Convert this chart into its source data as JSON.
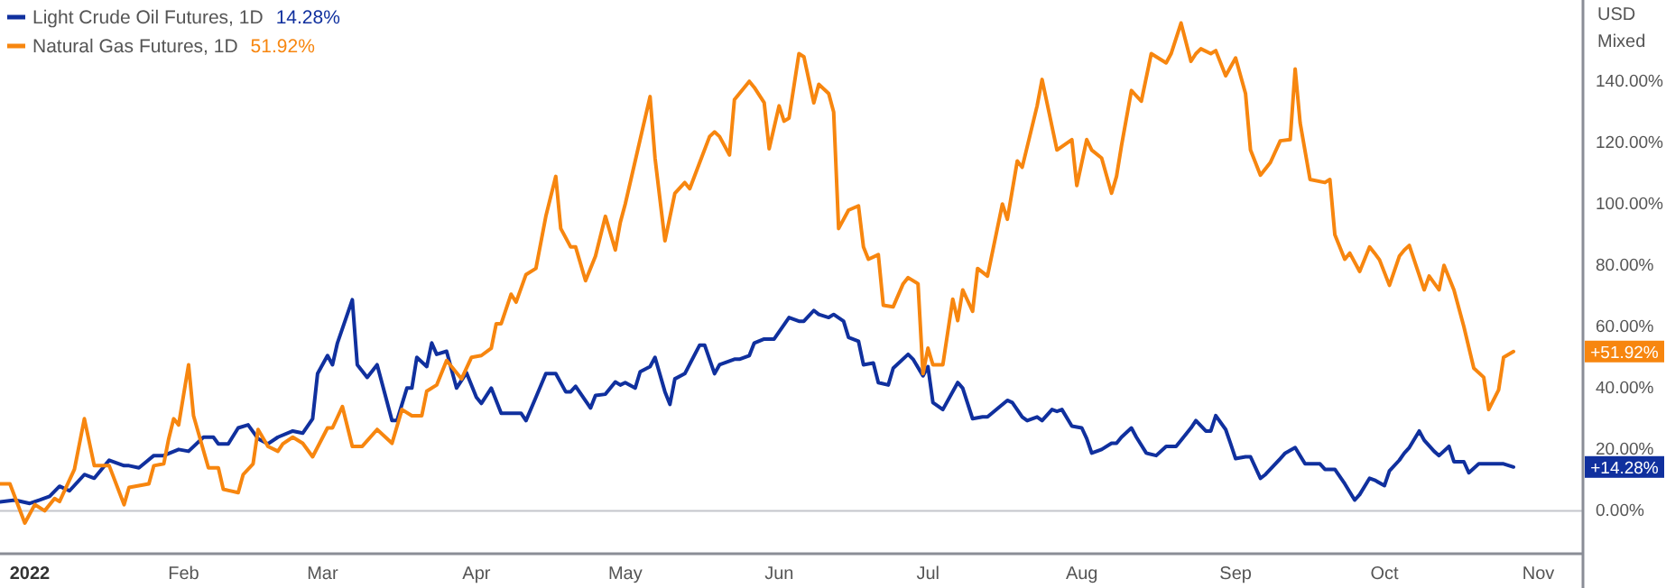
{
  "chart_data": {
    "type": "line",
    "legend": "top left",
    "line_style": "solid",
    "marker": "none",
    "grid": false,
    "xlim": [
      "2021-12-26",
      "2022-11-10"
    ],
    "xticks": [
      {
        "value": "2022-01-01",
        "label": "2022"
      },
      {
        "value": "2022-02-01",
        "label": "Feb"
      },
      {
        "value": "2022-03-01",
        "label": "Mar"
      },
      {
        "value": "2022-04-01",
        "label": "Apr"
      },
      {
        "value": "2022-05-01",
        "label": "May"
      },
      {
        "value": "2022-06-01",
        "label": "Jun"
      },
      {
        "value": "2022-07-01",
        "label": "Jul"
      },
      {
        "value": "2022-08-01",
        "label": "Aug"
      },
      {
        "value": "2022-09-01",
        "label": "Sep"
      },
      {
        "value": "2022-10-01",
        "label": "Oct"
      },
      {
        "value": "2022-11-01",
        "label": "Nov"
      }
    ],
    "ylim": [
      -14,
      166.5
    ],
    "yticks": [
      {
        "value": 0,
        "label": "0.00%"
      },
      {
        "value": 20,
        "label": "20.00%"
      },
      {
        "value": 40,
        "label": "40.00%"
      },
      {
        "value": 60,
        "label": "60.00%"
      },
      {
        "value": 80,
        "label": "80.00%"
      },
      {
        "value": 100,
        "label": "100.00%"
      },
      {
        "value": 120,
        "label": "120.00%"
      },
      {
        "value": 140,
        "label": "140.00%"
      }
    ],
    "ref_lines": [
      {
        "axis": "y",
        "value": 0,
        "color": "#c4c6cc"
      }
    ],
    "annotations": [
      "USD",
      "Mixed",
      "14.28%",
      "51.92%",
      "+14.28%",
      "+51.92%"
    ],
    "series": [
      {
        "name": "Light Crude Oil Futures, 1D",
        "color": "#10309e",
        "x": [
          "2021-12-26",
          "2021-12-29",
          "2022-01-01",
          "2022-01-03",
          "2022-01-05",
          "2022-01-07",
          "2022-01-09",
          "2022-01-12",
          "2022-01-14",
          "2022-01-17",
          "2022-01-20",
          "2022-01-21",
          "2022-01-23",
          "2022-01-26",
          "2022-01-28",
          "2022-01-31",
          "2022-02-02",
          "2022-02-05",
          "2022-02-07",
          "2022-02-08",
          "2022-02-10",
          "2022-02-12",
          "2022-02-14",
          "2022-02-16",
          "2022-02-18",
          "2022-02-20",
          "2022-02-23",
          "2022-02-25",
          "2022-02-27",
          "2022-02-28",
          "2022-03-02",
          "2022-03-03",
          "2022-03-04",
          "2022-03-07",
          "2022-03-08",
          "2022-03-10",
          "2022-03-12",
          "2022-03-15",
          "2022-03-16",
          "2022-03-18",
          "2022-03-19",
          "2022-03-20",
          "2022-03-22",
          "2022-03-23",
          "2022-03-24",
          "2022-03-26",
          "2022-03-28",
          "2022-03-30",
          "2022-04-01",
          "2022-04-02",
          "2022-04-04",
          "2022-04-06",
          "2022-04-10",
          "2022-04-11",
          "2022-04-13",
          "2022-04-15",
          "2022-04-17",
          "2022-04-19",
          "2022-04-20",
          "2022-04-21",
          "2022-04-24",
          "2022-04-25",
          "2022-04-27",
          "2022-04-29",
          "2022-04-30",
          "2022-05-01",
          "2022-05-03",
          "2022-05-04",
          "2022-05-06",
          "2022-05-07",
          "2022-05-09",
          "2022-05-10",
          "2022-05-11",
          "2022-05-13",
          "2022-05-16",
          "2022-05-17",
          "2022-05-19",
          "2022-05-20",
          "2022-05-23",
          "2022-05-24",
          "2022-05-26",
          "2022-05-27",
          "2022-05-29",
          "2022-05-31",
          "2022-06-03",
          "2022-06-05",
          "2022-06-06",
          "2022-06-08",
          "2022-06-09",
          "2022-06-11",
          "2022-06-12",
          "2022-06-14",
          "2022-06-15",
          "2022-06-17",
          "2022-06-18",
          "2022-06-20",
          "2022-06-21",
          "2022-06-23",
          "2022-06-24",
          "2022-06-27",
          "2022-06-28",
          "2022-06-30",
          "2022-07-01",
          "2022-07-02",
          "2022-07-04",
          "2022-07-07",
          "2022-07-08",
          "2022-07-10",
          "2022-07-12",
          "2022-07-13",
          "2022-07-17",
          "2022-07-18",
          "2022-07-20",
          "2022-07-21",
          "2022-07-23",
          "2022-07-24",
          "2022-07-26",
          "2022-07-27",
          "2022-07-28",
          "2022-07-30",
          "2022-08-01",
          "2022-08-02",
          "2022-08-03",
          "2022-08-05",
          "2022-08-07",
          "2022-08-08",
          "2022-08-09",
          "2022-08-11",
          "2022-08-12",
          "2022-08-14",
          "2022-08-16",
          "2022-08-18",
          "2022-08-20",
          "2022-08-21",
          "2022-08-23",
          "2022-08-24",
          "2022-08-26",
          "2022-08-27",
          "2022-08-28",
          "2022-08-30",
          "2022-08-31",
          "2022-09-01",
          "2022-09-03",
          "2022-09-04",
          "2022-09-06",
          "2022-09-07",
          "2022-09-10",
          "2022-09-11",
          "2022-09-13",
          "2022-09-15",
          "2022-09-18",
          "2022-09-19",
          "2022-09-21",
          "2022-09-23",
          "2022-09-25",
          "2022-09-26",
          "2022-09-28",
          "2022-09-29",
          "2022-10-01",
          "2022-10-02",
          "2022-10-04",
          "2022-10-05",
          "2022-10-06",
          "2022-10-08",
          "2022-10-09",
          "2022-10-11",
          "2022-10-12",
          "2022-10-14",
          "2022-10-15",
          "2022-10-17",
          "2022-10-18",
          "2022-10-20",
          "2022-10-22",
          "2022-10-25",
          "2022-10-27"
        ],
        "values": [
          2.9,
          3.5,
          2.4,
          3.5,
          4.7,
          8,
          6.5,
          11.8,
          10.6,
          16.5,
          14.7,
          14.7,
          14,
          18,
          18,
          20,
          19.4,
          24,
          24,
          21.8,
          21.8,
          27,
          28,
          23.5,
          21.8,
          24,
          26,
          25.3,
          30,
          44.7,
          50.6,
          47.6,
          54.7,
          68.8,
          47.6,
          43.5,
          47.6,
          29.4,
          29.4,
          40,
          40,
          50,
          47,
          54.7,
          51,
          52,
          40,
          45,
          37,
          35,
          40,
          31.8,
          31.8,
          29.4,
          37,
          44.7,
          44.7,
          38.8,
          38.8,
          40.6,
          33.5,
          37.6,
          38,
          42,
          41,
          41.8,
          40,
          45.3,
          47,
          50,
          38.8,
          34.7,
          43,
          44.7,
          54,
          54,
          44.7,
          47.6,
          49.4,
          49.4,
          50.6,
          54.7,
          56,
          56,
          63,
          61.8,
          61.8,
          65.3,
          64,
          63,
          64,
          61.8,
          56.5,
          55.3,
          47.6,
          48.2,
          41.8,
          41,
          46.5,
          51,
          49.4,
          44,
          47,
          35.3,
          33,
          41.8,
          40,
          30,
          30.6,
          30.6,
          36,
          35.3,
          30.6,
          29.4,
          30.6,
          29.4,
          33,
          32.4,
          33,
          27.6,
          27,
          23.5,
          18.8,
          20,
          22,
          22,
          24,
          27,
          24,
          18.8,
          18,
          21,
          21,
          23,
          27,
          29.4,
          26,
          26,
          31,
          26.5,
          21.8,
          17,
          17.6,
          17.6,
          10.6,
          11.8,
          17,
          18.8,
          20.6,
          15.3,
          15.3,
          13.5,
          13.5,
          8.8,
          3.5,
          5.3,
          10.6,
          10,
          8.2,
          13,
          16.5,
          18.8,
          20.6,
          26,
          23,
          19.4,
          18,
          21,
          16,
          16,
          12.4,
          15.3,
          15.3,
          15.3,
          14.28
        ]
      },
      {
        "name": "Natural Gas Futures, 1D",
        "color": "#f7860f",
        "x": [
          "2021-12-26",
          "2021-12-28",
          "2021-12-31",
          "2022-01-02",
          "2022-01-04",
          "2022-01-06",
          "2022-01-07",
          "2022-01-10",
          "2022-01-12",
          "2022-01-14",
          "2022-01-17",
          "2022-01-20",
          "2022-01-21",
          "2022-01-25",
          "2022-01-26",
          "2022-01-28",
          "2022-01-29",
          "2022-01-30",
          "2022-01-31",
          "2022-02-02",
          "2022-02-03",
          "2022-02-06",
          "2022-02-08",
          "2022-02-09",
          "2022-02-12",
          "2022-02-13",
          "2022-02-15",
          "2022-02-16",
          "2022-02-18",
          "2022-02-20",
          "2022-02-21",
          "2022-02-23",
          "2022-02-25",
          "2022-02-27",
          "2022-03-02",
          "2022-03-03",
          "2022-03-05",
          "2022-03-07",
          "2022-03-09",
          "2022-03-12",
          "2022-03-15",
          "2022-03-17",
          "2022-03-19",
          "2022-03-21",
          "2022-03-22",
          "2022-03-24",
          "2022-03-26",
          "2022-03-29",
          "2022-03-31",
          "2022-04-02",
          "2022-04-04",
          "2022-04-05",
          "2022-04-06",
          "2022-04-08",
          "2022-04-09",
          "2022-04-11",
          "2022-04-13",
          "2022-04-15",
          "2022-04-17",
          "2022-04-18",
          "2022-04-20",
          "2022-04-21",
          "2022-04-23",
          "2022-04-25",
          "2022-04-27",
          "2022-04-29",
          "2022-04-30",
          "2022-05-01",
          "2022-05-04",
          "2022-05-06",
          "2022-05-07",
          "2022-05-09",
          "2022-05-11",
          "2022-05-13",
          "2022-05-14",
          "2022-05-16",
          "2022-05-18",
          "2022-05-19",
          "2022-05-20",
          "2022-05-22",
          "2022-05-23",
          "2022-05-24",
          "2022-05-26",
          "2022-05-27",
          "2022-05-29",
          "2022-05-30",
          "2022-06-01",
          "2022-06-02",
          "2022-06-03",
          "2022-06-05",
          "2022-06-06",
          "2022-06-08",
          "2022-06-09",
          "2022-06-11",
          "2022-06-12",
          "2022-06-13",
          "2022-06-15",
          "2022-06-17",
          "2022-06-18",
          "2022-06-19",
          "2022-06-21",
          "2022-06-22",
          "2022-06-24",
          "2022-06-26",
          "2022-06-27",
          "2022-06-29",
          "2022-06-30",
          "2022-07-01",
          "2022-07-02",
          "2022-07-04",
          "2022-07-06",
          "2022-07-07",
          "2022-07-08",
          "2022-07-10",
          "2022-07-11",
          "2022-07-13",
          "2022-07-16",
          "2022-07-17",
          "2022-07-19",
          "2022-07-20",
          "2022-07-23",
          "2022-07-24",
          "2022-07-27",
          "2022-07-30",
          "2022-07-31",
          "2022-08-02",
          "2022-08-03",
          "2022-08-05",
          "2022-08-07",
          "2022-08-08",
          "2022-08-09",
          "2022-08-11",
          "2022-08-13",
          "2022-08-15",
          "2022-08-18",
          "2022-08-19",
          "2022-08-21",
          "2022-08-23",
          "2022-08-24",
          "2022-08-25",
          "2022-08-27",
          "2022-08-28",
          "2022-08-30",
          "2022-09-01",
          "2022-09-03",
          "2022-09-04",
          "2022-09-06",
          "2022-09-08",
          "2022-09-10",
          "2022-09-12",
          "2022-09-13",
          "2022-09-14",
          "2022-09-16",
          "2022-09-19",
          "2022-09-20",
          "2022-09-21",
          "2022-09-23",
          "2022-09-24",
          "2022-09-26",
          "2022-09-28",
          "2022-09-29",
          "2022-09-30",
          "2022-10-02",
          "2022-10-04",
          "2022-10-05",
          "2022-10-06",
          "2022-10-09",
          "2022-10-10",
          "2022-10-12",
          "2022-10-13",
          "2022-10-15",
          "2022-10-17",
          "2022-10-19",
          "2022-10-21",
          "2022-10-22",
          "2022-10-24",
          "2022-10-25",
          "2022-10-27"
        ],
        "values": [
          8.8,
          8.8,
          -4,
          2,
          0,
          4,
          3,
          13.5,
          30,
          14.7,
          14.7,
          2,
          7.6,
          8.8,
          14.7,
          15.3,
          23.5,
          30,
          28,
          47.6,
          31,
          14,
          14,
          7,
          5.9,
          11.8,
          15.3,
          26.5,
          21,
          19.4,
          21.8,
          24,
          22,
          17.6,
          27,
          27,
          34,
          21,
          21,
          26.5,
          22,
          33,
          31,
          31,
          39,
          41,
          49,
          43,
          50,
          50.6,
          53,
          61,
          61,
          70.6,
          68,
          77,
          79,
          96,
          109,
          92,
          86,
          86,
          75,
          83,
          96,
          85,
          94,
          100,
          121,
          135,
          115,
          88,
          103.5,
          107,
          105,
          113.5,
          122,
          123.5,
          122,
          116,
          134,
          136,
          140,
          138,
          133,
          118,
          132,
          127,
          128,
          149,
          148,
          133,
          139,
          136,
          130,
          92,
          98,
          99.4,
          86,
          82,
          83.5,
          67,
          66.5,
          74,
          76,
          74,
          44.7,
          53,
          47.6,
          47.6,
          69,
          62,
          72,
          65,
          79,
          76.5,
          100,
          95,
          114,
          112,
          132,
          140.6,
          117.6,
          121,
          106,
          121,
          117.6,
          115,
          103.5,
          109,
          119,
          137,
          133.5,
          149,
          146,
          149,
          159,
          146.5,
          149,
          150.6,
          149,
          150,
          141.8,
          147.6,
          136,
          117.6,
          109.4,
          113.5,
          120.6,
          121,
          144,
          126.5,
          108,
          107,
          108,
          90,
          82,
          84,
          78,
          86,
          84,
          81.8,
          73.5,
          83,
          85,
          86.5,
          72,
          76.5,
          72,
          80,
          72,
          60,
          46.5,
          43.5,
          33,
          39.4,
          50,
          51.92
        ]
      }
    ]
  }
}
